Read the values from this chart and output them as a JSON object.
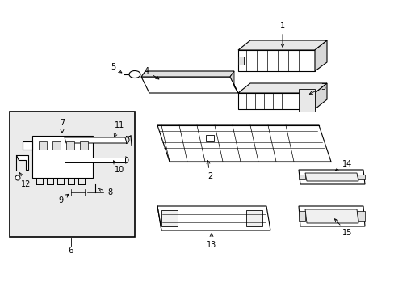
{
  "bg_color": "#ffffff",
  "line_color": "#000000",
  "box_bg": "#ebebeb",
  "figsize": [
    4.89,
    3.6
  ],
  "dpi": 100,
  "lw": 0.8
}
